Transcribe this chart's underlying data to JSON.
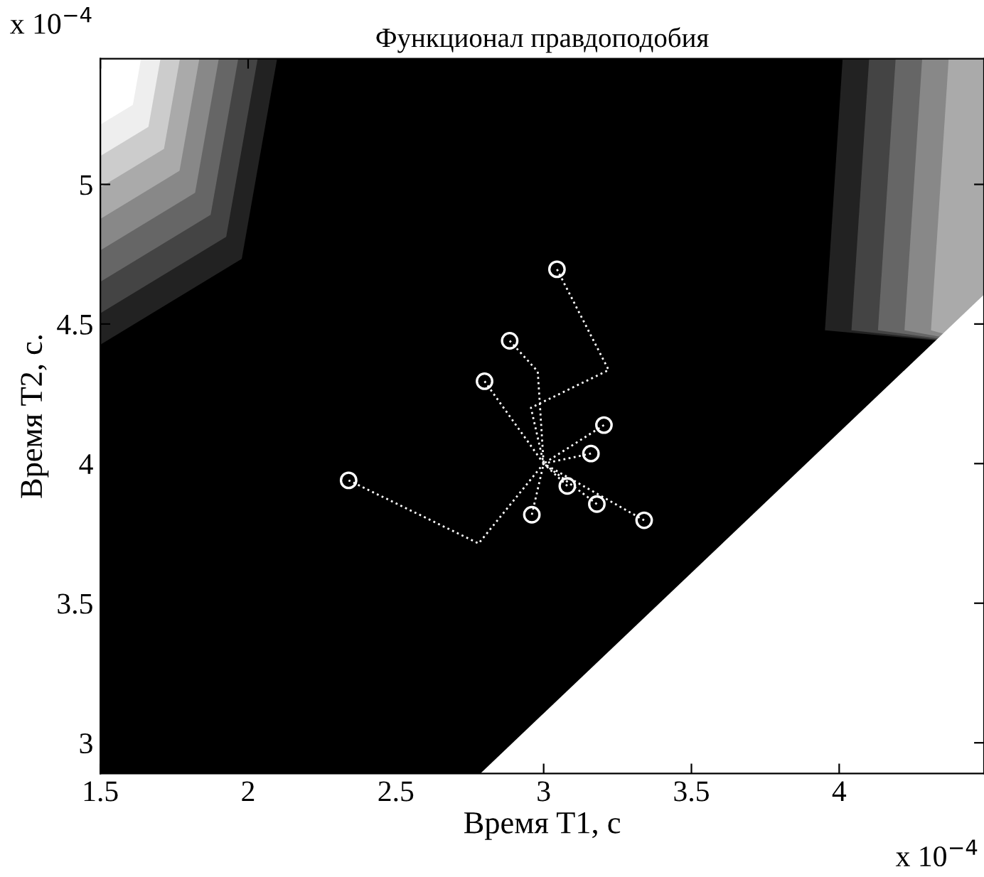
{
  "chart_data": {
    "type": "scatter",
    "title": "Функционал правдоподобия",
    "xlabel": "Время T1, с",
    "ylabel": "Время T2, с.",
    "annotations": [
      "x 10$^{−4}$",
      "x 10$^{−4}$"
    ],
    "xlim": [
      1.5,
      4.49
    ],
    "ylim": [
      2.89,
      5.45
    ],
    "xticks": [
      1.5,
      2,
      2.5,
      3,
      3.5,
      4
    ],
    "yticks": [
      3,
      3.5,
      4,
      4.5,
      5
    ],
    "grid": false,
    "legend": false,
    "series": [
      {
        "type": "line",
        "color": "#ffffff",
        "line_style": "dotted",
        "marker": "none",
        "x": [
          3.045,
          3.22,
          2.957,
          3.0,
          null,
          2.885,
          2.98,
          3.0,
          null,
          2.8,
          3.0,
          null,
          2.34,
          2.78,
          3.0,
          null,
          3.204,
          3.0,
          null,
          3.16,
          3.0,
          null,
          3.08,
          3.0,
          null,
          3.18,
          3.0,
          null,
          2.96,
          3.0,
          null,
          3.34,
          3.0
        ],
        "values": [
          4.696,
          4.335,
          4.2,
          4.0,
          null,
          4.44,
          4.33,
          4.0,
          null,
          4.295,
          4.0,
          null,
          3.94,
          3.714,
          4.0,
          null,
          4.138,
          4.0,
          null,
          4.036,
          4.0,
          null,
          3.92,
          4.0,
          null,
          3.855,
          4.0,
          null,
          3.817,
          4.0,
          null,
          3.797,
          4.0
        ]
      },
      {
        "type": "scatter",
        "color": "#ffffff",
        "marker": "circle",
        "x": [
          3.045,
          2.885,
          2.8,
          3.204,
          3.16,
          2.34,
          3.08,
          3.18,
          2.96,
          3.34
        ],
        "values": [
          4.696,
          4.44,
          4.295,
          4.138,
          4.036,
          3.94,
          3.92,
          3.855,
          3.817,
          3.797
        ]
      }
    ]
  }
}
